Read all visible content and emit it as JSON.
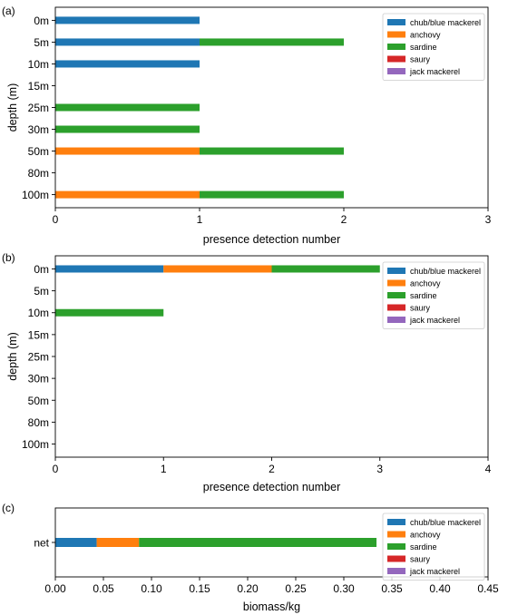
{
  "colors": {
    "chub/blue mackerel": "#1f77b4",
    "anchovy": "#ff7f0e",
    "sardine": "#2ca02c",
    "saury": "#d62728",
    "jack mackerel": "#9467bd"
  },
  "chart_data": [
    {
      "type": "bar",
      "orientation": "horizontal",
      "stacked": true,
      "panel_label": "(a)",
      "categories": [
        "0m",
        "5m",
        "10m",
        "15m",
        "25m",
        "30m",
        "50m",
        "80m",
        "100m"
      ],
      "series": [
        {
          "name": "chub/blue mackerel",
          "values": [
            1,
            1,
            1,
            0,
            0,
            0,
            0,
            0,
            0
          ]
        },
        {
          "name": "anchovy",
          "values": [
            0,
            0,
            0,
            0,
            0,
            0,
            1,
            0,
            1
          ]
        },
        {
          "name": "sardine",
          "values": [
            0,
            1,
            0,
            0,
            1,
            1,
            1,
            0,
            1
          ]
        },
        {
          "name": "saury",
          "values": [
            0,
            0,
            0,
            0,
            0,
            0,
            0,
            0,
            0
          ]
        },
        {
          "name": "jack mackerel",
          "values": [
            0,
            0,
            0,
            0,
            0,
            0,
            0,
            0,
            0
          ]
        }
      ],
      "xlabel": "presence detection number",
      "ylabel": "depth (m)",
      "xlim": [
        0,
        3
      ],
      "xticks": [
        "0",
        "1",
        "2",
        "3"
      ],
      "legend": "top-right",
      "grid": false
    },
    {
      "type": "bar",
      "orientation": "horizontal",
      "stacked": true,
      "panel_label": "(b)",
      "categories": [
        "0m",
        "5m",
        "10m",
        "15m",
        "25m",
        "30m",
        "50m",
        "80m",
        "100m"
      ],
      "series": [
        {
          "name": "chub/blue mackerel",
          "values": [
            1,
            0,
            0,
            0,
            0,
            0,
            0,
            0,
            0
          ]
        },
        {
          "name": "anchovy",
          "values": [
            1,
            0,
            0,
            0,
            0,
            0,
            0,
            0,
            0
          ]
        },
        {
          "name": "sardine",
          "values": [
            1,
            0,
            1,
            0,
            0,
            0,
            0,
            0,
            0
          ]
        },
        {
          "name": "saury",
          "values": [
            0,
            0,
            0,
            0,
            0,
            0,
            0,
            0,
            0
          ]
        },
        {
          "name": "jack mackerel",
          "values": [
            0,
            0,
            0,
            0,
            0,
            0,
            0,
            0,
            0
          ]
        }
      ],
      "xlabel": "presence detection number",
      "ylabel": "depth (m)",
      "xlim": [
        0,
        4
      ],
      "xticks": [
        "0",
        "1",
        "2",
        "3",
        "4"
      ],
      "legend": "top-right",
      "grid": false
    },
    {
      "type": "bar",
      "orientation": "horizontal",
      "stacked": true,
      "panel_label": "(c)",
      "categories": [
        "net"
      ],
      "series": [
        {
          "name": "chub/blue mackerel",
          "values": [
            0.043
          ]
        },
        {
          "name": "anchovy",
          "values": [
            0.044
          ]
        },
        {
          "name": "sardine",
          "values": [
            0.247
          ]
        },
        {
          "name": "saury",
          "values": [
            0
          ]
        },
        {
          "name": "jack mackerel",
          "values": [
            0
          ]
        }
      ],
      "xlabel": "biomass/kg",
      "ylabel": "",
      "xlim": [
        0,
        0.45
      ],
      "xticks": [
        "0.00",
        "0.05",
        "0.10",
        "0.15",
        "0.20",
        "0.25",
        "0.30",
        "0.35",
        "0.40",
        "0.45"
      ],
      "legend": "top-right",
      "grid": false
    }
  ]
}
